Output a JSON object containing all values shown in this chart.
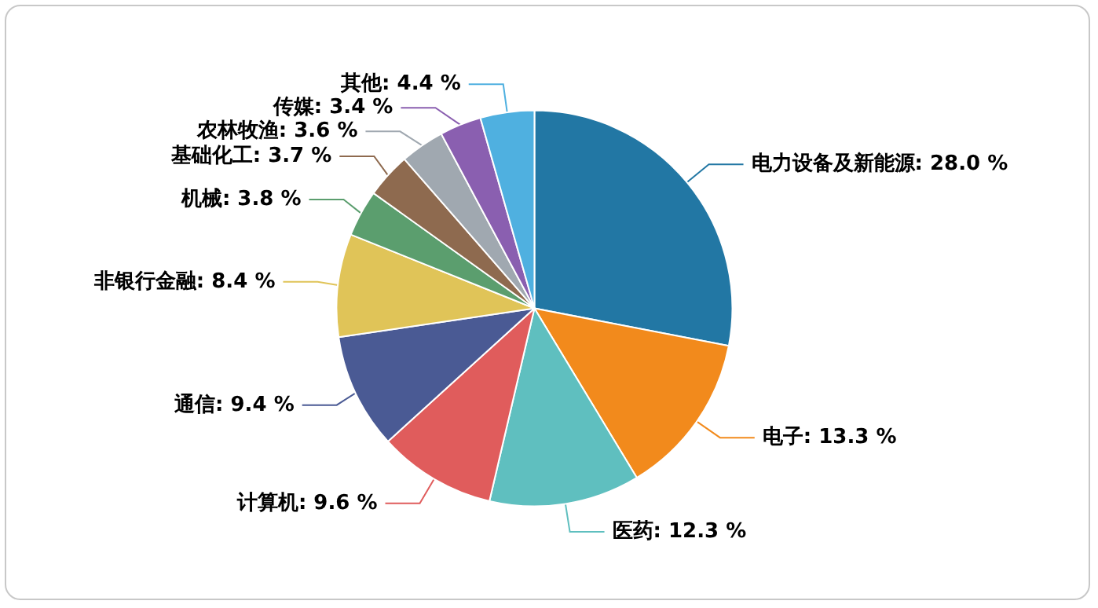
{
  "chart_data": {
    "type": "pie",
    "categories": [
      "电力设备及新能源",
      "电子",
      "医药",
      "计算机",
      "通信",
      "非银行金融",
      "机械",
      "基础化工",
      "农林牧渔",
      "传媒",
      "其他"
    ],
    "values": [
      28.0,
      13.3,
      12.3,
      9.6,
      9.4,
      8.4,
      3.8,
      3.7,
      3.6,
      3.4,
      4.4
    ],
    "value_labels": [
      "28.0 %",
      "13.3 %",
      "12.3 %",
      "9.6 %",
      "9.4 %",
      "8.4 %",
      "3.8 %",
      "3.7 %",
      "3.6 %",
      "3.4 %",
      "4.4 %"
    ],
    "colors": [
      "#2277a4",
      "#f28a1c",
      "#5fbfbf",
      "#e05c5c",
      "#4a5a94",
      "#e0c458",
      "#5b9e6e",
      "#8e6a4f",
      "#a0a8b0",
      "#8a5fb0",
      "#4fb0e0"
    ],
    "legend": false
  }
}
